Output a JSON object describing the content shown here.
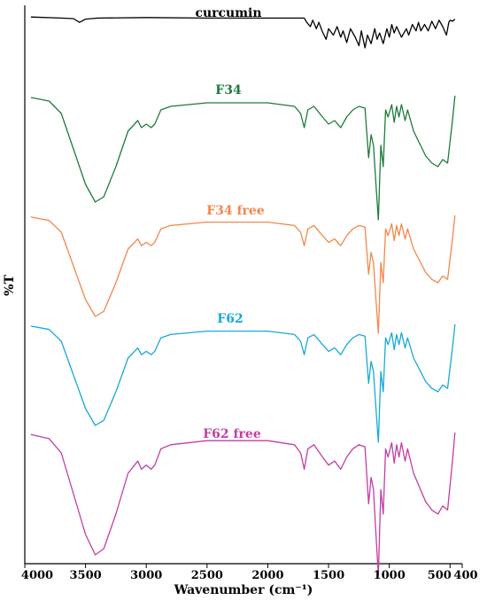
{
  "chart_data": {
    "type": "line",
    "title": "",
    "xlabel": "Wavenumber (cm⁻¹)",
    "ylabel": "%T",
    "xlim": [
      4000,
      400
    ],
    "x_reversed": true,
    "x_ticks": [
      4000,
      3500,
      3000,
      2500,
      2000,
      1500,
      1000,
      500,
      400
    ],
    "y_ticks": [],
    "grid": false,
    "legend": "none",
    "series": [
      {
        "name": "curcumin",
        "color": "#000000",
        "x": [
          3950,
          3700,
          3600,
          3550,
          3500,
          3400,
          3000,
          2500,
          2000,
          1700,
          1680,
          1650,
          1630,
          1600,
          1580,
          1550,
          1520,
          1500,
          1460,
          1430,
          1400,
          1380,
          1350,
          1320,
          1280,
          1250,
          1230,
          1200,
          1180,
          1150,
          1120,
          1100,
          1080,
          1050,
          1020,
          1000,
          980,
          960,
          940,
          900,
          860,
          840,
          810,
          780,
          760,
          740,
          710,
          680,
          650,
          620,
          590,
          560,
          530,
          510,
          500,
          480,
          460
        ],
        "values": [
          99,
          98,
          97.5,
          94,
          97,
          98,
          98.5,
          98,
          98,
          98,
          94,
          90,
          96,
          88,
          94,
          85,
          78,
          88,
          82,
          90,
          80,
          86,
          75,
          88,
          80,
          72,
          86,
          70,
          82,
          74,
          88,
          78,
          84,
          74,
          88,
          80,
          92,
          84,
          90,
          80,
          88,
          82,
          92,
          86,
          94,
          86,
          92,
          86,
          95,
          88,
          96,
          90,
          82,
          94,
          96,
          95,
          97
        ]
      },
      {
        "name": "F34",
        "color": "#1e7b3c",
        "x": [
          3950,
          3800,
          3700,
          3600,
          3500,
          3420,
          3350,
          3250,
          3150,
          3070,
          3040,
          3000,
          2960,
          2930,
          2880,
          2800,
          2500,
          2000,
          1780,
          1730,
          1700,
          1670,
          1620,
          1550,
          1500,
          1450,
          1400,
          1350,
          1300,
          1250,
          1200,
          1170,
          1150,
          1130,
          1110,
          1090,
          1070,
          1050,
          1030,
          1010,
          980,
          960,
          940,
          920,
          900,
          870,
          850,
          800,
          700,
          650,
          600,
          560,
          520,
          480,
          460
        ],
        "values": [
          99,
          97,
          90,
          70,
          50,
          40,
          43,
          60,
          80,
          86,
          82,
          84,
          82,
          84,
          92,
          94,
          96,
          96,
          94,
          90,
          82,
          92,
          94,
          88,
          84,
          86,
          82,
          88,
          92,
          94,
          93,
          65,
          78,
          72,
          50,
          30,
          72,
          60,
          92,
          88,
          95,
          85,
          94,
          88,
          95,
          86,
          92,
          80,
          66,
          62,
          60,
          64,
          62,
          86,
          100
        ]
      },
      {
        "name": "F34 free",
        "color": "#f4874b",
        "x": [
          3950,
          3800,
          3700,
          3600,
          3500,
          3420,
          3350,
          3250,
          3150,
          3070,
          3040,
          3000,
          2960,
          2930,
          2880,
          2800,
          2500,
          2000,
          1780,
          1730,
          1700,
          1670,
          1620,
          1550,
          1500,
          1450,
          1400,
          1350,
          1300,
          1250,
          1200,
          1170,
          1150,
          1130,
          1110,
          1090,
          1070,
          1050,
          1030,
          1010,
          980,
          960,
          940,
          920,
          900,
          870,
          850,
          800,
          700,
          650,
          600,
          560,
          520,
          480,
          460
        ],
        "values": [
          99,
          97,
          90,
          70,
          50,
          40,
          43,
          60,
          80,
          86,
          82,
          84,
          82,
          84,
          92,
          94,
          96,
          96,
          94,
          90,
          82,
          92,
          94,
          88,
          84,
          86,
          82,
          88,
          92,
          94,
          93,
          65,
          78,
          72,
          50,
          30,
          72,
          60,
          92,
          88,
          95,
          85,
          94,
          88,
          95,
          86,
          92,
          80,
          66,
          62,
          60,
          64,
          62,
          86,
          100
        ]
      },
      {
        "name": "F62",
        "color": "#1aa8d8",
        "x": [
          3950,
          3800,
          3700,
          3600,
          3500,
          3420,
          3350,
          3250,
          3150,
          3070,
          3040,
          3000,
          2960,
          2930,
          2880,
          2800,
          2500,
          2000,
          1780,
          1730,
          1700,
          1670,
          1620,
          1550,
          1500,
          1450,
          1400,
          1350,
          1300,
          1250,
          1200,
          1170,
          1150,
          1130,
          1110,
          1090,
          1070,
          1050,
          1030,
          1010,
          980,
          960,
          940,
          920,
          900,
          870,
          850,
          800,
          700,
          650,
          600,
          560,
          520,
          480,
          460
        ],
        "values": [
          99,
          97,
          90,
          70,
          50,
          40,
          43,
          60,
          80,
          86,
          82,
          84,
          82,
          84,
          92,
          94,
          96,
          96,
          94,
          90,
          82,
          92,
          94,
          88,
          84,
          86,
          82,
          88,
          92,
          94,
          93,
          65,
          78,
          72,
          50,
          30,
          72,
          60,
          92,
          88,
          95,
          85,
          94,
          88,
          95,
          86,
          92,
          80,
          66,
          62,
          60,
          64,
          62,
          86,
          100
        ]
      },
      {
        "name": "F62 free",
        "color": "#c13ea5",
        "x": [
          3950,
          3800,
          3700,
          3600,
          3500,
          3420,
          3350,
          3250,
          3150,
          3070,
          3040,
          3000,
          2960,
          2930,
          2880,
          2800,
          2500,
          2000,
          1780,
          1730,
          1700,
          1670,
          1620,
          1550,
          1500,
          1450,
          1400,
          1350,
          1300,
          1250,
          1200,
          1170,
          1150,
          1130,
          1110,
          1090,
          1070,
          1050,
          1030,
          1010,
          980,
          960,
          940,
          920,
          900,
          870,
          850,
          800,
          700,
          650,
          600,
          560,
          520,
          480,
          460
        ],
        "values": [
          99,
          97,
          90,
          70,
          50,
          40,
          43,
          60,
          80,
          86,
          82,
          84,
          82,
          84,
          92,
          94,
          96,
          96,
          94,
          90,
          82,
          92,
          94,
          88,
          84,
          86,
          82,
          88,
          92,
          94,
          93,
          65,
          78,
          72,
          50,
          30,
          72,
          60,
          92,
          88,
          95,
          85,
          94,
          88,
          95,
          86,
          92,
          80,
          66,
          62,
          60,
          64,
          62,
          86,
          100
        ]
      }
    ]
  }
}
